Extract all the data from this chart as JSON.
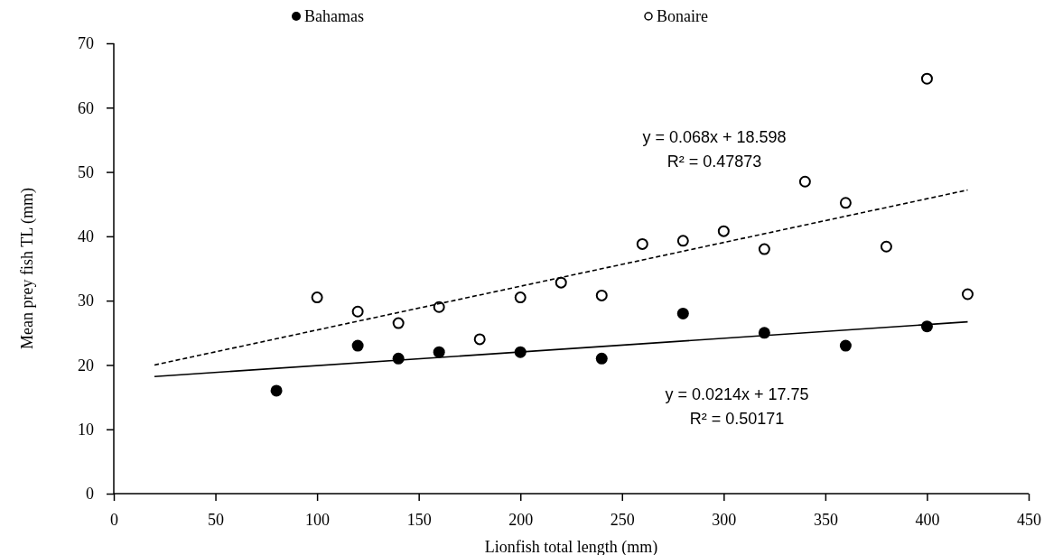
{
  "chart_data": {
    "type": "scatter",
    "xlabel": "Lionfish total length (mm)",
    "ylabel": "Mean prey fish TL (mm)",
    "xlim": [
      0,
      450
    ],
    "xticks": [
      0,
      50,
      100,
      150,
      200,
      250,
      300,
      350,
      400,
      450
    ],
    "ylim": [
      0,
      70
    ],
    "yticks": [
      0,
      10,
      20,
      30,
      40,
      50,
      60,
      70
    ],
    "grid": false,
    "legend": "top",
    "marker": "circle",
    "series": [
      {
        "name": "Bahamas",
        "color": "#000000",
        "x": [
          80,
          120,
          140,
          160,
          200,
          240,
          280,
          320,
          360,
          400
        ],
        "values": [
          16,
          23,
          21,
          22,
          22,
          21,
          28,
          25,
          23,
          26
        ]
      },
      {
        "name": "Bonaire",
        "color": "#ffffff",
        "x": [
          100,
          120,
          140,
          160,
          180,
          200,
          220,
          240,
          260,
          280,
          300,
          320,
          340,
          360,
          380,
          400,
          420
        ],
        "values": [
          30.5,
          28.3,
          26.5,
          29,
          24,
          30.5,
          32.8,
          30.8,
          38.8,
          39.3,
          40.8,
          38,
          48.5,
          45.2,
          38.4,
          64.5,
          31
        ]
      },
      {
        "type": "line",
        "color": "#000000",
        "line_style": "solid",
        "marker": "none",
        "x": [
          20,
          420
        ],
        "values": [
          18.2,
          26.7
        ]
      },
      {
        "type": "line",
        "color": "#000000",
        "line_style": "dashed",
        "marker": "none",
        "x": [
          20,
          420
        ],
        "values": [
          20,
          47.2
        ]
      }
    ],
    "annotations": [
      "y = 0.068x + 18.598\nR² = 0.47873",
      "y = 0.0214x + 17.75\nR² = 0.50171"
    ]
  }
}
